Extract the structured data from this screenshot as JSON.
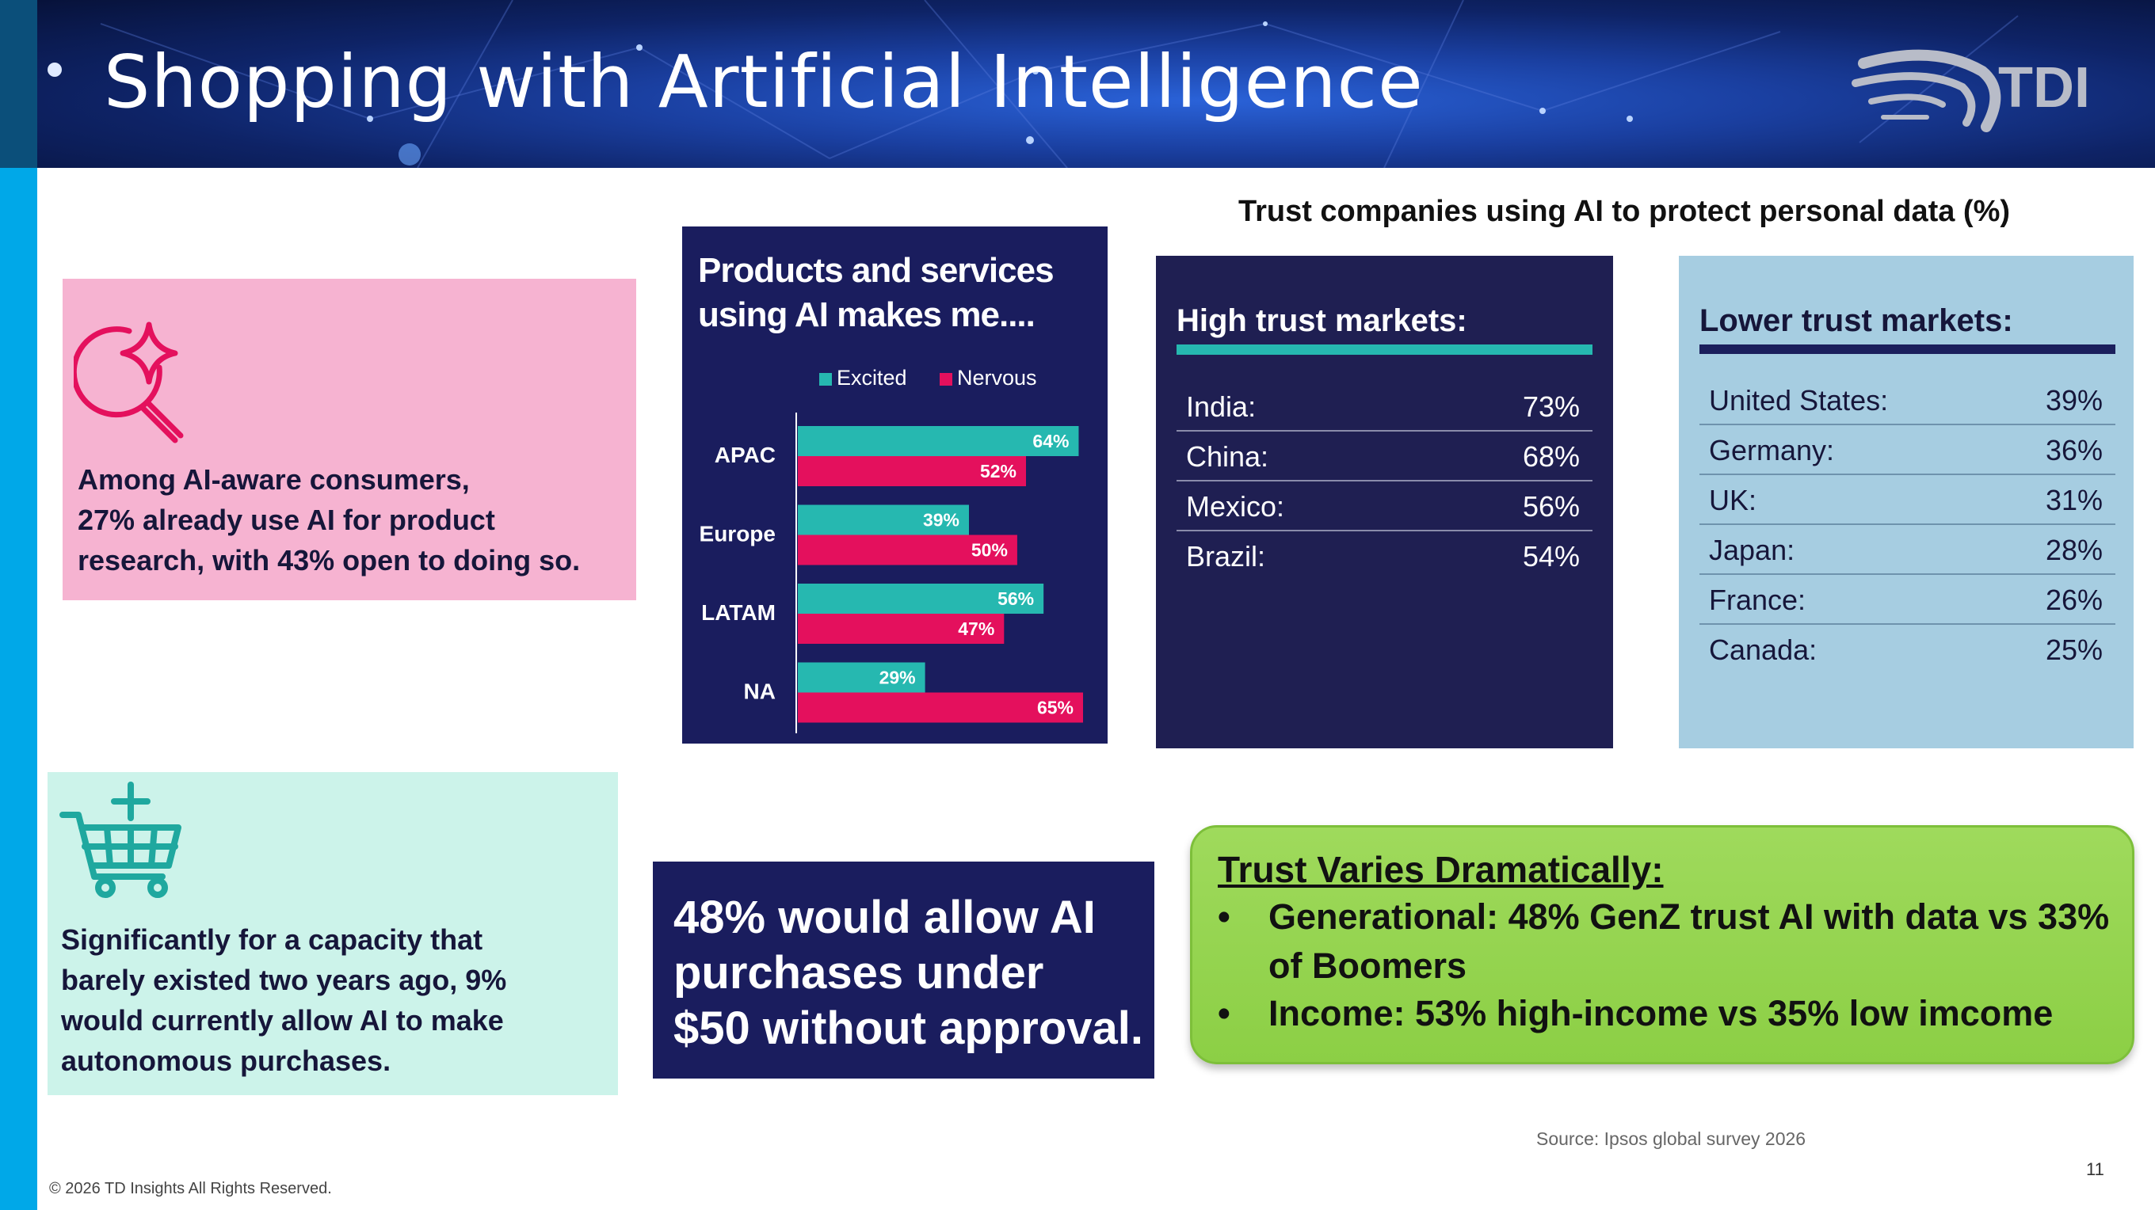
{
  "slide": {
    "title": "Shopping with Artificial Intelligence",
    "logo_text": "TDI",
    "source": "Source: Ipsos global survey 2026",
    "page_number": "11",
    "copyright": "© 2026 TD Insights All Rights Reserved."
  },
  "cards": {
    "pink": {
      "icon": "magnify-sparkle-icon",
      "lines": [
        "Among AI-aware consumers,",
        "27% already use AI for product",
        "research, with 43% open to doing so."
      ]
    },
    "mint": {
      "icon": "shopping-cart-plus-icon",
      "lines": [
        "Significantly for a capacity that",
        "barely existed two years ago, 9%",
        "would currently allow AI to make",
        "autonomous purchases."
      ]
    },
    "allow": {
      "lines": [
        "48% would allow AI",
        "purchases under",
        "$50 without approval."
      ]
    }
  },
  "chart_data": {
    "type": "bar",
    "orientation": "horizontal",
    "title": "Products and services using AI makes me....",
    "title_lines": [
      "Products and services",
      "using AI makes me...."
    ],
    "categories": [
      "APAC",
      "Europe",
      "LATAM",
      "NA"
    ],
    "series": [
      {
        "name": "Excited",
        "values": [
          64,
          39,
          56,
          29
        ],
        "color": "#26b8b0"
      },
      {
        "name": "Nervous",
        "values": [
          52,
          50,
          47,
          65
        ],
        "color": "#e4105d"
      }
    ],
    "value_suffix": "%",
    "legend_position": "top",
    "xlim": [
      0,
      65
    ]
  },
  "trust": {
    "title": "Trust companies using AI to protect personal data (%)",
    "high": {
      "title": "High trust markets:",
      "accent": "#26b8b0",
      "rows": [
        {
          "name": "India:",
          "value": "73%"
        },
        {
          "name": "China:",
          "value": "68%"
        },
        {
          "name": "Mexico:",
          "value": "56%"
        },
        {
          "name": "Brazil:",
          "value": "54%"
        }
      ]
    },
    "low": {
      "title": "Lower trust markets:",
      "accent": "#1b1f5c",
      "rows": [
        {
          "name": "United States:",
          "value": "39%"
        },
        {
          "name": "Germany:",
          "value": "36%"
        },
        {
          "name": "UK:",
          "value": "31%"
        },
        {
          "name": "Japan:",
          "value": "28%"
        },
        {
          "name": "France:",
          "value": "26%"
        },
        {
          "name": "Canada:",
          "value": "25%"
        }
      ]
    }
  },
  "callout": {
    "heading": "Trust Varies Dramatically:",
    "bullet_symbol": "•",
    "bullets": [
      "Generational: 48% GenZ trust AI with data vs 33% of Boomers",
      "Income: 53% high-income vs 35% low imcome"
    ]
  }
}
